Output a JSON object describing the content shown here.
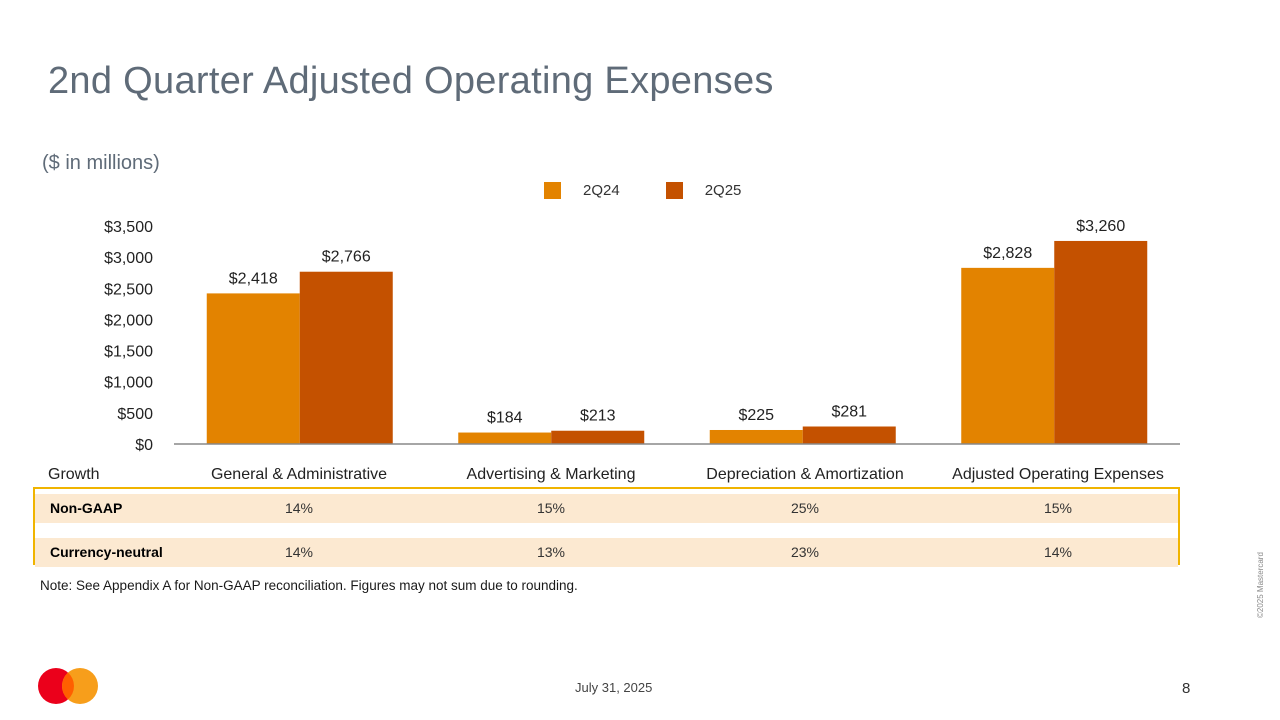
{
  "slide": {
    "title": "2nd Quarter Adjusted Operating Expenses",
    "subtitle": "($ in millions)",
    "note": "Note: See Appendix A for Non-GAAP reconciliation. Figures may not sum due to rounding.",
    "date": "July 31, 2025",
    "page_number": "8",
    "copyright": "©2025 Mastercard",
    "logo_icon": "mastercard-logo-icon"
  },
  "colors": {
    "series_2q24": "#e38300",
    "series_2q25": "#c45100",
    "table_border": "#f0b400",
    "table_row_bg": "#fce9d1",
    "title": "#5f6b78"
  },
  "chart_data": {
    "type": "bar",
    "categories": [
      "General & Administrative",
      "Advertising & Marketing",
      "Depreciation & Amortization",
      "Adjusted Operating Expenses"
    ],
    "series": [
      {
        "name": "2Q24",
        "values": [
          2418,
          184,
          225,
          2828
        ],
        "labels": [
          "$2,418",
          "$184",
          "$225",
          "$2,828"
        ]
      },
      {
        "name": "2Q25",
        "values": [
          2766,
          213,
          281,
          3260
        ],
        "labels": [
          "$2,766",
          "$213",
          "$281",
          "$3,260"
        ]
      }
    ],
    "ylim": [
      0,
      3500
    ],
    "yticks": [
      0,
      500,
      1000,
      1500,
      2000,
      2500,
      3000,
      3500
    ],
    "ytick_labels": [
      "$0",
      "$500",
      "$1,000",
      "$1,500",
      "$2,000",
      "$2,500",
      "$3,000",
      "$3,500"
    ],
    "legend_position": "top-center",
    "grid": false
  },
  "growth": {
    "header": "Growth",
    "rows": [
      {
        "name": "Non-GAAP",
        "values": [
          "14%",
          "15%",
          "25%",
          "15%"
        ]
      },
      {
        "name": "Currency-neutral",
        "values": [
          "14%",
          "13%",
          "23%",
          "14%"
        ]
      }
    ]
  }
}
